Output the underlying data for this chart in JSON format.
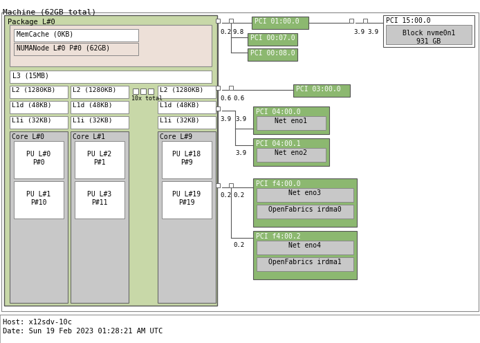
{
  "title": "Machine (62GB total)",
  "footer_line1": "Host: x12sdv-10c",
  "footer_line2": "Date: Sun 19 Feb 2023 01:28:21 AM UTC",
  "colors": {
    "pkg_green": "#c8d8a8",
    "pci_green": "#8cb870",
    "light_gray": "#c8c8c8",
    "white": "#ffffff",
    "numanode_bg": "#ede0d8",
    "border_dark": "#444444",
    "border_med": "#777777",
    "border_light": "#999999",
    "text_dark": "#000000",
    "text_white": "#ffffff",
    "bg": "#ffffff"
  },
  "figsize": [
    6.94,
    4.96
  ],
  "dpi": 100
}
